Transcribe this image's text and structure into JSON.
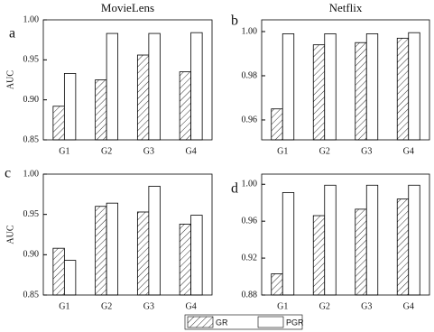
{
  "chart_data": [
    {
      "type": "bar",
      "label": "a",
      "title": "MovieLens",
      "ylabel": "AUC",
      "categories": [
        "G1",
        "G2",
        "G3",
        "G4"
      ],
      "series": [
        {
          "pattern": "hatch",
          "values": [
            0.892,
            0.925,
            0.956,
            0.935
          ]
        },
        {
          "pattern": "plain",
          "values": [
            0.933,
            0.983,
            0.983,
            0.984
          ]
        }
      ],
      "ylim": [
        0.85,
        1.0
      ],
      "yticks": [
        0.85,
        {
          "value": 0.9,
          "label": "0.90"
        },
        0.95,
        {
          "value": 1.0,
          "label": "1.00"
        }
      ]
    },
    {
      "type": "bar",
      "label": "b",
      "title": "Netflix",
      "categories": [
        "G1",
        "G2",
        "G3",
        "G4"
      ],
      "series": [
        {
          "pattern": "hatch",
          "values": [
            0.965,
            0.994,
            0.995,
            0.997
          ]
        },
        {
          "pattern": "plain",
          "values": [
            0.999,
            0.999,
            0.999,
            0.9995
          ]
        }
      ],
      "ylim": [
        0.951,
        1.0053
      ],
      "yticks": [
        0.96,
        0.98,
        {
          "value": 1.0,
          "label": "1.00"
        }
      ]
    },
    {
      "type": "bar",
      "label": "c",
      "ylabel": "AUC",
      "categories": [
        "G1",
        "G2",
        "G3",
        "G4"
      ],
      "series": [
        {
          "pattern": "hatch",
          "values": [
            0.908,
            0.96,
            0.953,
            0.938
          ]
        },
        {
          "pattern": "plain",
          "values": [
            0.893,
            0.964,
            0.985,
            0.949
          ]
        }
      ],
      "ylim": [
        0.85,
        1.0
      ],
      "yticks": [
        0.85,
        {
          "value": 0.9,
          "label": "0.90"
        },
        0.95,
        {
          "value": 1.0,
          "label": "1.00"
        }
      ]
    },
    {
      "type": "bar",
      "label": "d",
      "categories": [
        "G1",
        "G2",
        "G3",
        "G4"
      ],
      "series": [
        {
          "pattern": "hatch",
          "values": [
            0.903,
            0.966,
            0.973,
            0.984
          ]
        },
        {
          "pattern": "plain",
          "values": [
            0.991,
            0.999,
            0.999,
            0.999
          ]
        }
      ],
      "ylim": [
        0.88,
        1.011
      ],
      "yticks": [
        0.88,
        0.92,
        0.96,
        {
          "value": 1.0,
          "label": "1.00"
        }
      ]
    }
  ],
  "legend": [
    {
      "name": "GR",
      "pattern": "hatch"
    },
    {
      "name": "PGR",
      "pattern": "plain"
    }
  ]
}
